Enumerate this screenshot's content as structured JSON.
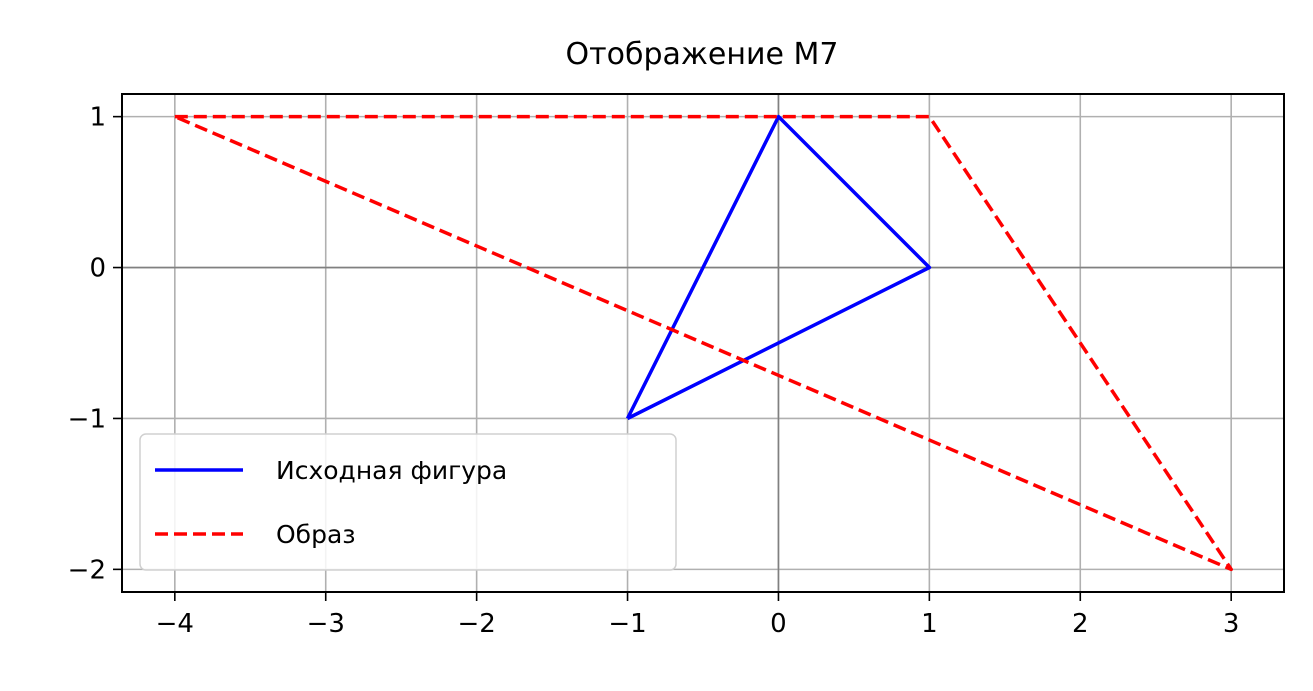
{
  "chart_data": {
    "type": "line",
    "title": "Отображение M7",
    "xlabel": "",
    "ylabel": "",
    "xlim": [
      -4.35,
      3.35
    ],
    "ylim": [
      -2.15,
      1.15
    ],
    "x_ticks": [
      -4,
      -3,
      -2,
      -1,
      0,
      1,
      2,
      3
    ],
    "y_ticks": [
      -2,
      -1,
      0,
      1
    ],
    "x_tick_labels": [
      "−4",
      "−3",
      "−2",
      "−1",
      "0",
      "1",
      "2",
      "3"
    ],
    "y_tick_labels": [
      "−2",
      "−1",
      "0",
      "1"
    ],
    "grid": true,
    "legend_position": "lower-left",
    "series": [
      {
        "name": "Исходная фигура",
        "color": "#0000ff",
        "style": "solid",
        "points": [
          [
            -1,
            -1
          ],
          [
            0,
            1
          ],
          [
            1,
            0
          ],
          [
            -1,
            -1
          ]
        ]
      },
      {
        "name": "Образ",
        "color": "#ff0000",
        "style": "dashed",
        "points": [
          [
            -4,
            1
          ],
          [
            1,
            1
          ],
          [
            3,
            -2
          ],
          [
            -4,
            1
          ]
        ]
      }
    ]
  }
}
